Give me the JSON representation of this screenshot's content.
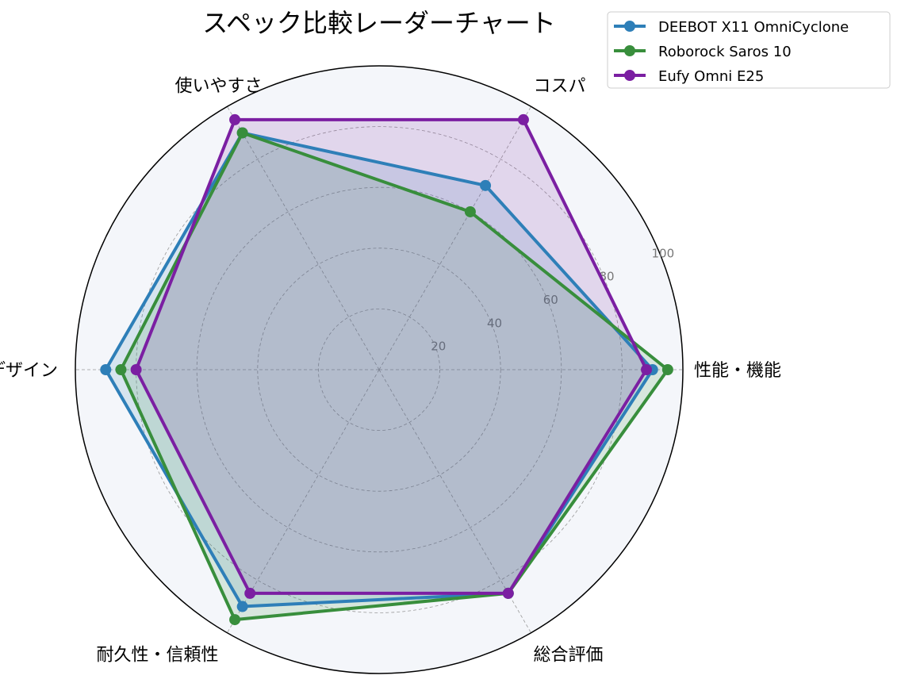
{
  "chart_data": {
    "type": "radar",
    "title": "スペック比較レーダーチャート",
    "categories": [
      "性能・機能",
      "コスパ",
      "使いやすさ",
      "デザイン",
      "耐久性・信頼性",
      "総合評価"
    ],
    "rlim": [
      0,
      100
    ],
    "rticks": [
      20,
      40,
      60,
      80,
      100
    ],
    "grid": true,
    "legend_position": "top-right",
    "series": [
      {
        "name": "DEEBOT X11 OmniCyclone",
        "color": "#2e7fb8",
        "values": [
          90,
          70,
          90,
          90,
          90,
          85
        ]
      },
      {
        "name": "Roborock Saros 10",
        "color": "#388e3c",
        "values": [
          95,
          60,
          90,
          85,
          95,
          85
        ]
      },
      {
        "name": "Eufy Omni E25",
        "color": "#7b1fa2",
        "values": [
          88,
          95,
          95,
          80,
          85,
          85
        ]
      }
    ]
  }
}
